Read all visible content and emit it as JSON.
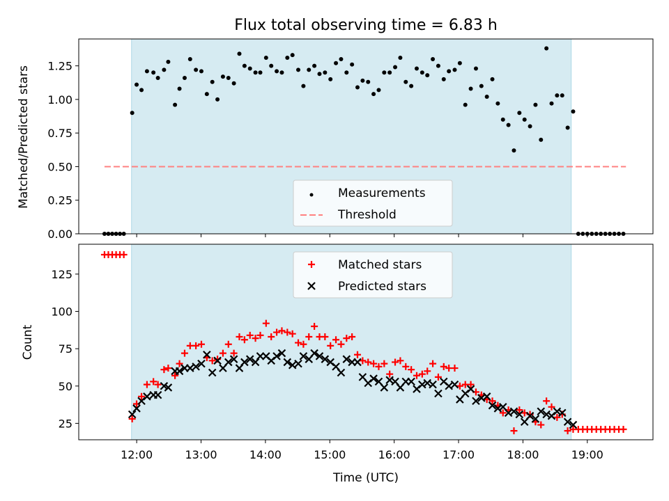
{
  "title": "Flux total observing time = 6.83 h",
  "colors": {
    "shade": "#add8e6",
    "measurement": "#000000",
    "threshold": "#ff8080",
    "matched": "#ff0000",
    "predicted": "#000000"
  },
  "chart_data": [
    {
      "type": "scatter",
      "ylabel": "Matched/Predicted stars",
      "xlim": [
        11.1,
        20.02
      ],
      "ylim": [
        0.0,
        1.45
      ],
      "yticks": [
        0.0,
        0.25,
        0.5,
        0.75,
        1.0,
        1.25
      ],
      "ytick_labels": [
        "0.00",
        "0.25",
        "0.50",
        "0.75",
        "1.00",
        "1.25"
      ],
      "shaded_span": [
        11.92,
        18.75
      ],
      "legend": {
        "position": "lower center",
        "entries": [
          "Measurements",
          "Threshold"
        ]
      },
      "threshold": {
        "name": "Threshold",
        "y": 0.5,
        "x_range": [
          11.5,
          19.6
        ]
      },
      "series": [
        {
          "name": "Measurements",
          "marker": "dot",
          "x": [
            11.5,
            11.56,
            11.62,
            11.68,
            11.74,
            11.8,
            11.93,
            11.999,
            12.075,
            12.16,
            12.26,
            12.33,
            12.425,
            12.49,
            12.595,
            12.665,
            12.745,
            12.83,
            12.92,
            13.005,
            13.09,
            13.175,
            13.255,
            13.34,
            13.425,
            13.51,
            13.595,
            13.675,
            13.76,
            13.845,
            13.92,
            14.01,
            14.09,
            14.175,
            14.255,
            14.34,
            14.42,
            14.51,
            14.59,
            14.675,
            14.76,
            14.84,
            14.925,
            15.01,
            15.095,
            15.175,
            15.26,
            15.345,
            15.43,
            15.51,
            15.595,
            15.68,
            15.76,
            15.845,
            15.93,
            16.015,
            16.095,
            16.18,
            16.265,
            16.35,
            16.435,
            16.515,
            16.6,
            16.685,
            16.77,
            16.85,
            16.94,
            17.02,
            17.105,
            17.19,
            17.27,
            17.355,
            17.44,
            17.525,
            17.61,
            17.69,
            17.775,
            17.86,
            17.945,
            18.025,
            18.11,
            18.195,
            18.28,
            18.365,
            18.445,
            18.53,
            18.61,
            18.695,
            18.78,
            18.86,
            18.93,
            19.0,
            19.07,
            19.14,
            19.21,
            19.28,
            19.35,
            19.42,
            19.49,
            19.56
          ],
          "y": [
            0.0,
            0.0,
            0.0,
            0.0,
            0.0,
            0.0,
            0.9,
            1.11,
            1.07,
            1.21,
            1.2,
            1.16,
            1.22,
            1.28,
            0.96,
            1.08,
            1.16,
            1.3,
            1.22,
            1.21,
            1.04,
            1.13,
            1.0,
            1.17,
            1.16,
            1.12,
            1.34,
            1.25,
            1.23,
            1.2,
            1.2,
            1.31,
            1.25,
            1.21,
            1.2,
            1.31,
            1.33,
            1.22,
            1.1,
            1.22,
            1.25,
            1.19,
            1.2,
            1.15,
            1.27,
            1.3,
            1.2,
            1.26,
            1.09,
            1.14,
            1.13,
            1.04,
            1.07,
            1.2,
            1.2,
            1.24,
            1.31,
            1.13,
            1.1,
            1.23,
            1.2,
            1.18,
            1.3,
            1.25,
            1.15,
            1.21,
            1.22,
            1.27,
            0.96,
            1.08,
            1.23,
            1.1,
            1.02,
            1.15,
            0.97,
            0.85,
            0.81,
            0.62,
            0.9,
            0.85,
            0.8,
            0.96,
            0.7,
            1.38,
            0.97,
            1.03,
            1.03,
            0.79,
            0.91,
            0.0,
            0.0,
            0.0,
            0.0,
            0.0,
            0.0,
            0.0,
            0.0,
            0.0,
            0.0,
            0.0
          ]
        }
      ]
    },
    {
      "type": "scatter",
      "xlabel": "Time (UTC)",
      "ylabel": "Count",
      "xlim": [
        11.1,
        20.02
      ],
      "ylim": [
        14,
        145
      ],
      "yticks": [
        25,
        50,
        75,
        100,
        125
      ],
      "ytick_labels": [
        "25",
        "50",
        "75",
        "100",
        "125"
      ],
      "xticks": [
        12,
        13,
        14,
        15,
        16,
        17,
        18,
        19
      ],
      "xtick_labels": [
        "12:00",
        "13:00",
        "14:00",
        "15:00",
        "16:00",
        "17:00",
        "18:00",
        "19:00"
      ],
      "shaded_span": [
        11.92,
        18.75
      ],
      "legend": {
        "position": "upper center",
        "entries": [
          "Matched stars",
          "Predicted stars"
        ]
      },
      "series": [
        {
          "name": "Matched stars",
          "marker": "plus",
          "x": [
            11.5,
            11.56,
            11.62,
            11.68,
            11.74,
            11.8,
            11.93,
            11.999,
            12.075,
            12.16,
            12.26,
            12.33,
            12.425,
            12.49,
            12.595,
            12.665,
            12.745,
            12.83,
            12.92,
            13.005,
            13.09,
            13.175,
            13.255,
            13.34,
            13.425,
            13.51,
            13.595,
            13.675,
            13.76,
            13.845,
            13.92,
            14.01,
            14.09,
            14.175,
            14.255,
            14.34,
            14.42,
            14.51,
            14.59,
            14.675,
            14.76,
            14.84,
            14.925,
            15.01,
            15.095,
            15.175,
            15.26,
            15.345,
            15.43,
            15.51,
            15.595,
            15.68,
            15.76,
            15.845,
            15.93,
            16.015,
            16.095,
            16.18,
            16.265,
            16.35,
            16.435,
            16.515,
            16.6,
            16.685,
            16.77,
            16.85,
            16.94,
            17.02,
            17.105,
            17.19,
            17.27,
            17.355,
            17.44,
            17.525,
            17.61,
            17.69,
            17.775,
            17.86,
            17.945,
            18.025,
            18.11,
            18.195,
            18.28,
            18.365,
            18.445,
            18.53,
            18.61,
            18.695,
            18.78,
            18.86,
            18.93,
            19.0,
            19.07,
            19.14,
            19.21,
            19.28,
            19.35,
            19.42,
            19.49,
            19.56
          ],
          "y": [
            138,
            138,
            138,
            138,
            138,
            138,
            28,
            38,
            43,
            51,
            53,
            51,
            61,
            62,
            57,
            65,
            72,
            77,
            77,
            78,
            69,
            67,
            68,
            72,
            78,
            72,
            83,
            81,
            84,
            82,
            84,
            92,
            83,
            86,
            87,
            86,
            85,
            79,
            78,
            83,
            90,
            83,
            83,
            77,
            81,
            78,
            82,
            83,
            71,
            67,
            66,
            65,
            63,
            65,
            58,
            66,
            67,
            63,
            61,
            57,
            58,
            60,
            65,
            56,
            63,
            62,
            62,
            50,
            51,
            51,
            46,
            44,
            41,
            40,
            37,
            32,
            34,
            20,
            34,
            32,
            31,
            26,
            24,
            40,
            36,
            29,
            31,
            20,
            21,
            21,
            21,
            21,
            21,
            21,
            21,
            21,
            21,
            21,
            21,
            21
          ]
        },
        {
          "name": "Predicted stars",
          "marker": "x",
          "x": [
            11.93,
            11.999,
            12.075,
            12.16,
            12.26,
            12.33,
            12.425,
            12.49,
            12.595,
            12.665,
            12.745,
            12.83,
            12.92,
            13.005,
            13.09,
            13.175,
            13.255,
            13.34,
            13.425,
            13.51,
            13.595,
            13.675,
            13.76,
            13.845,
            13.92,
            14.01,
            14.09,
            14.175,
            14.255,
            14.34,
            14.42,
            14.51,
            14.59,
            14.675,
            14.76,
            14.84,
            14.925,
            15.01,
            15.095,
            15.175,
            15.26,
            15.345,
            15.43,
            15.51,
            15.595,
            15.68,
            15.76,
            15.845,
            15.93,
            16.015,
            16.095,
            16.18,
            16.265,
            16.35,
            16.435,
            16.515,
            16.6,
            16.685,
            16.77,
            16.85,
            16.94,
            17.02,
            17.105,
            17.19,
            17.27,
            17.355,
            17.44,
            17.525,
            17.61,
            17.69,
            17.775,
            17.86,
            17.945,
            18.025,
            18.11,
            18.195,
            18.28,
            18.365,
            18.445,
            18.53,
            18.61,
            18.695,
            18.78
          ],
          "y": [
            31,
            35,
            40,
            43,
            44,
            44,
            50,
            49,
            60,
            60,
            62,
            62,
            63,
            65,
            71,
            59,
            67,
            62,
            66,
            68,
            62,
            66,
            68,
            66,
            70,
            70,
            67,
            70,
            72,
            66,
            64,
            65,
            70,
            68,
            72,
            70,
            68,
            66,
            63,
            59,
            68,
            66,
            66,
            56,
            52,
            55,
            53,
            49,
            54,
            53,
            49,
            53,
            53,
            48,
            51,
            52,
            51,
            45,
            53,
            50,
            51,
            41,
            45,
            48,
            40,
            42,
            43,
            37,
            35,
            36,
            32,
            33,
            31,
            26,
            30,
            28,
            33,
            31,
            30,
            33,
            32,
            26,
            24
          ]
        }
      ]
    }
  ]
}
